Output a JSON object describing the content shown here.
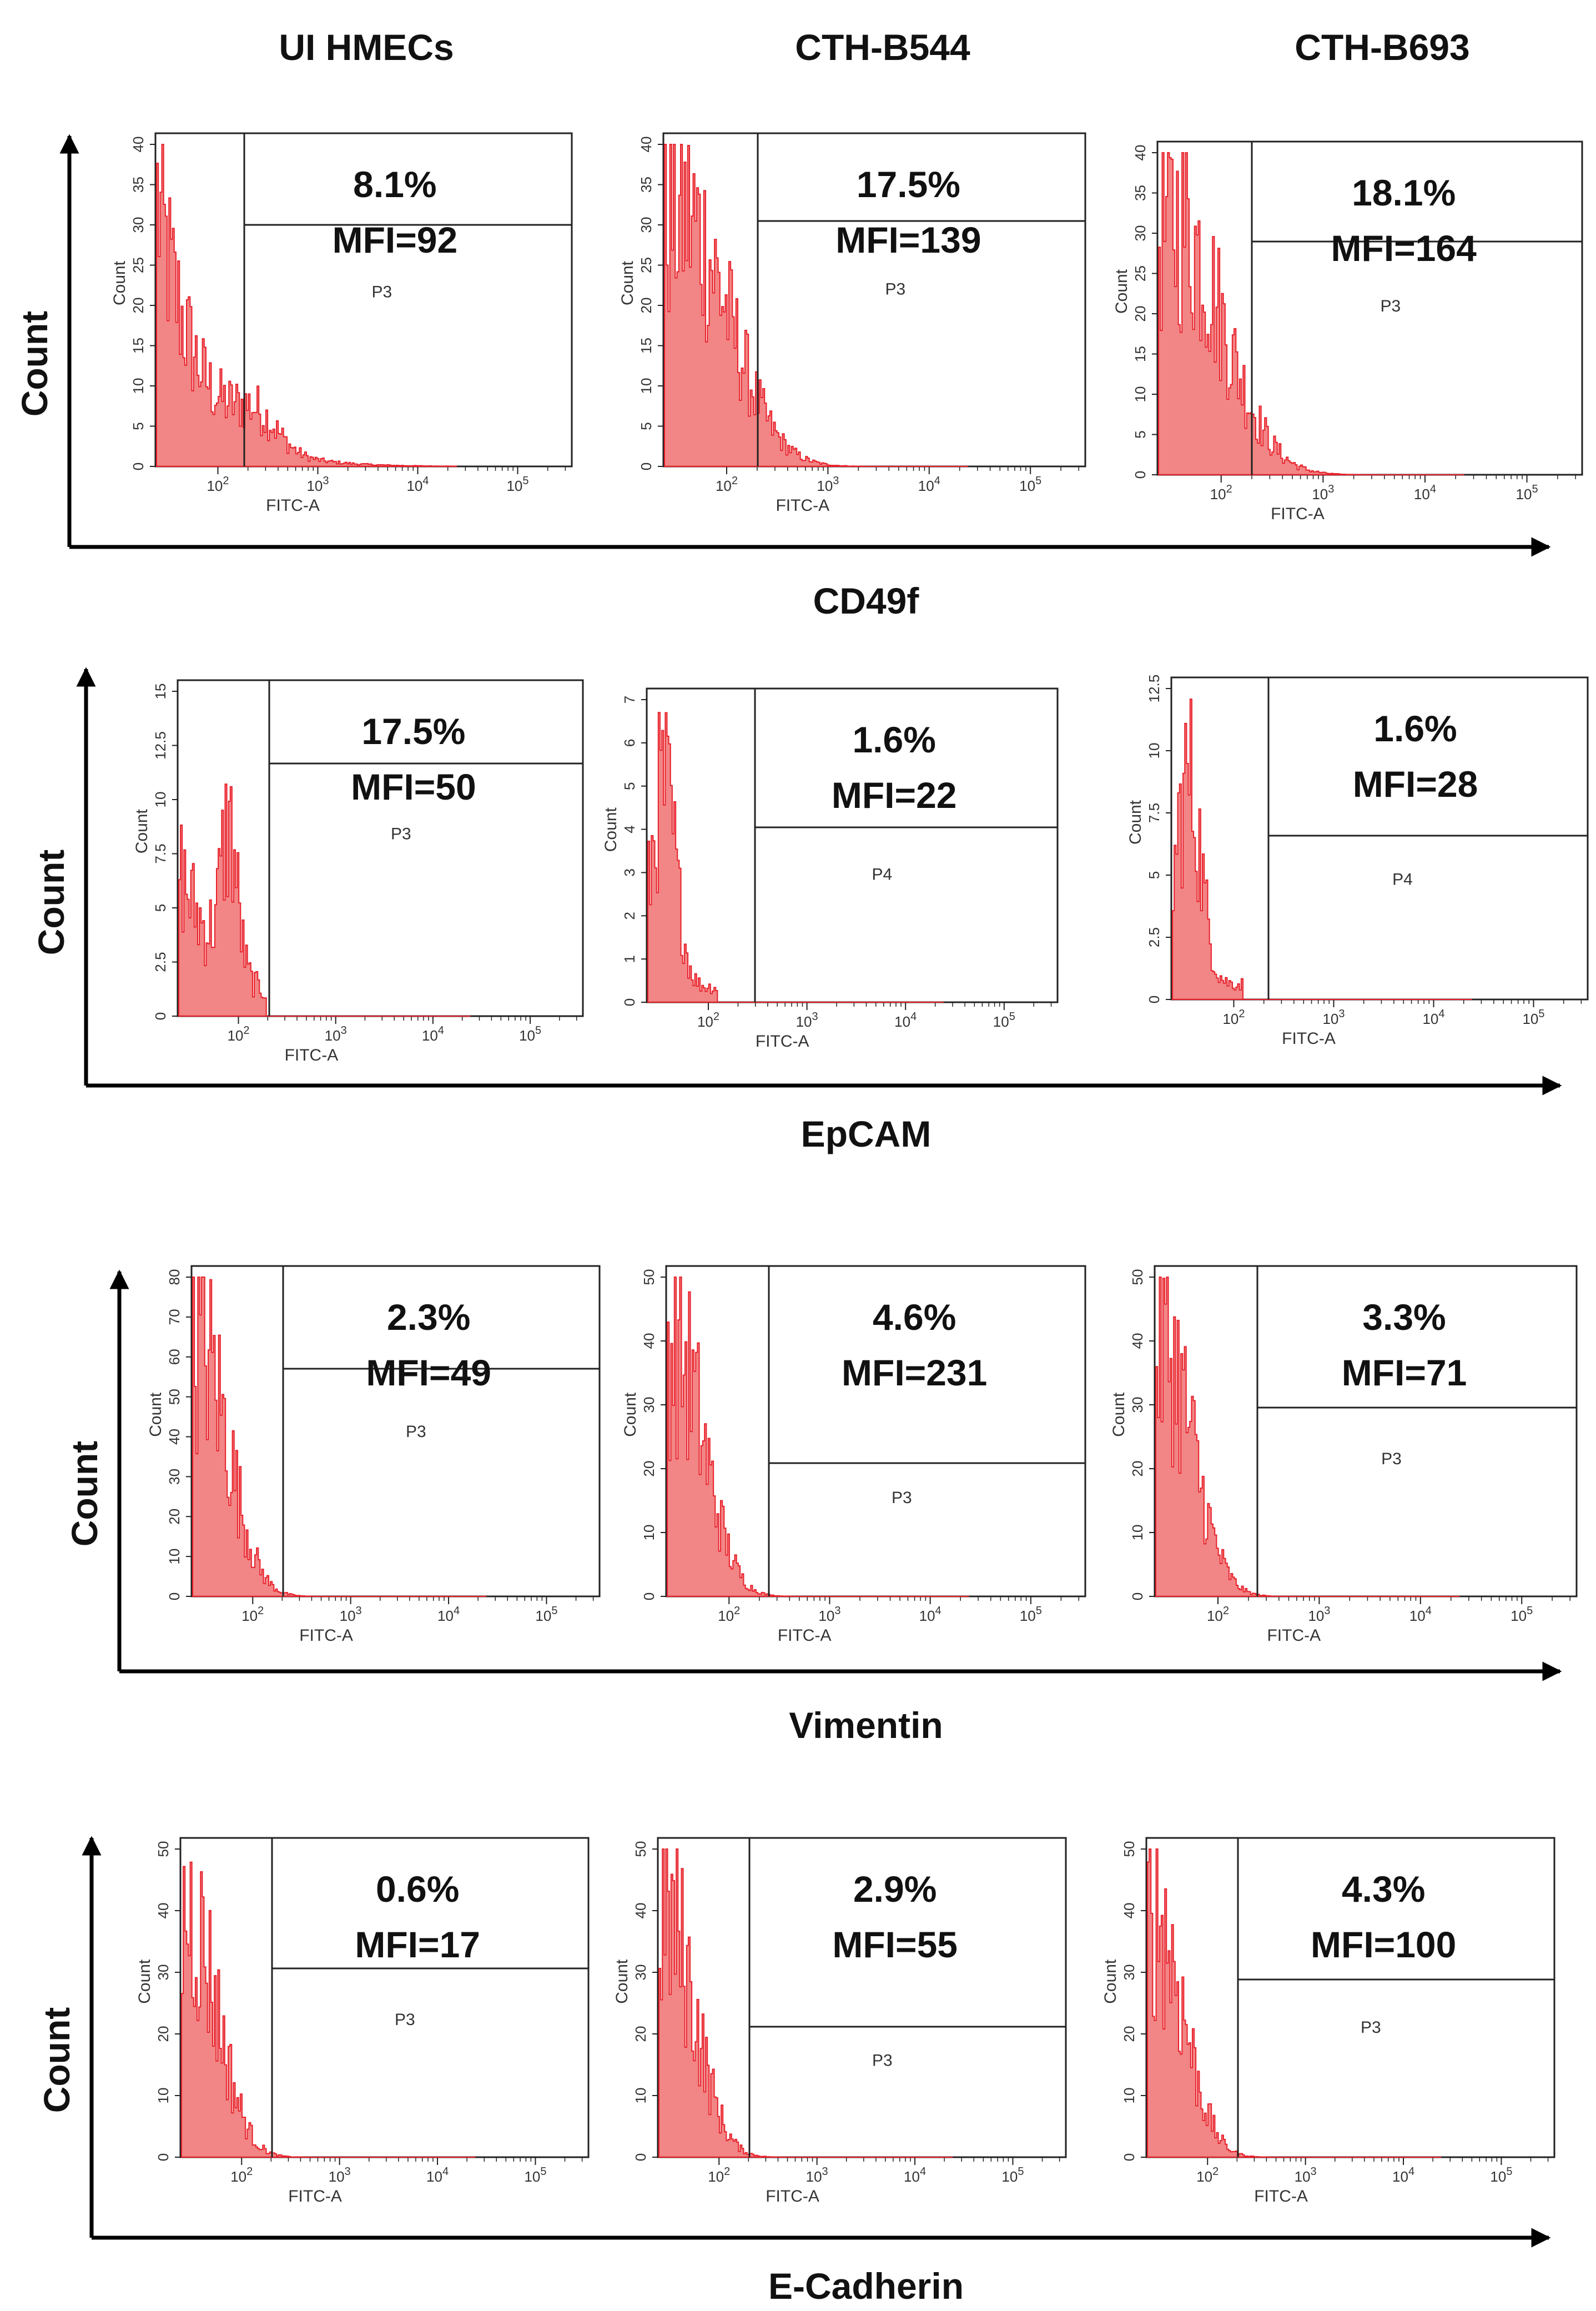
{
  "column_titles": [
    "UI HMECs",
    "CTH-B544",
    "CTH-B693"
  ],
  "row_axis_label": "Count",
  "colors": {
    "histogram": "#e8202a",
    "fill": "#f07070",
    "frame": "#222222",
    "axis": "#000000"
  },
  "chart_data": [
    {
      "type": "histogram",
      "marker": "CD49f",
      "xlabel": "FITC-A",
      "ylabel": "Count",
      "xscale": "log",
      "xticks": [
        "10^2",
        "10^3",
        "10^4",
        "10^5"
      ],
      "panels": [
        {
          "sample": "UI HMECs",
          "percent": "8.1%",
          "mfi": "MFI=92",
          "gate": "P3",
          "ymax": 40,
          "yticks": [
            "0",
            "5",
            "10",
            "15",
            "20",
            "25",
            "30",
            "35",
            "40"
          ],
          "profile": "broad"
        },
        {
          "sample": "CTH-B544",
          "percent": "17.5%",
          "mfi": "MFI=139",
          "gate": "P3",
          "ymax": 40,
          "yticks": [
            "0",
            "5",
            "10",
            "15",
            "20",
            "25",
            "30",
            "35",
            "40"
          ],
          "profile": "wide"
        },
        {
          "sample": "CTH-B693",
          "percent": "18.1%",
          "mfi": "MFI=164",
          "gate": "P3",
          "ymax": 40,
          "yticks": [
            "0",
            "5",
            "10",
            "15",
            "20",
            "25",
            "30",
            "35",
            "40"
          ],
          "profile": "wide"
        }
      ]
    },
    {
      "type": "histogram",
      "marker": "EpCAM",
      "xlabel": "FITC-A",
      "ylabel": "Count",
      "xscale": "log",
      "xticks": [
        "10^2",
        "10^3",
        "10^4",
        "10^5"
      ],
      "panels": [
        {
          "sample": "UI HMECs",
          "percent": "17.5%",
          "mfi": "MFI=50",
          "gate": "P3",
          "ymax": 15,
          "yticks": [
            "0",
            "2.5",
            "5",
            "7.5",
            "10",
            "12.5",
            "15"
          ],
          "profile": "bimodal"
        },
        {
          "sample": "CTH-B544",
          "percent": "1.6%",
          "mfi": "MFI=22",
          "gate": "P4",
          "ymax": 7,
          "yticks": [
            "0",
            "1",
            "2",
            "3",
            "4",
            "5",
            "6",
            "7"
          ],
          "profile": "sparse"
        },
        {
          "sample": "CTH-B693",
          "percent": "1.6%",
          "mfi": "MFI=28",
          "gate": "P4",
          "ymax": 12.5,
          "yticks": [
            "0",
            "2.5",
            "5",
            "7.5",
            "10",
            "12.5"
          ],
          "profile": "sparse"
        }
      ]
    },
    {
      "type": "histogram",
      "marker": "Vimentin",
      "xlabel": "FITC-A",
      "ylabel": "Count",
      "xscale": "log",
      "xticks": [
        "10^2",
        "10^3",
        "10^4",
        "10^5"
      ],
      "panels": [
        {
          "sample": "UI HMECs",
          "percent": "2.3%",
          "mfi": "MFI=49",
          "gate": "P3",
          "ymax": 80,
          "yticks": [
            "0",
            "10",
            "20",
            "30",
            "40",
            "50",
            "60",
            "70",
            "80"
          ],
          "profile": "narrow"
        },
        {
          "sample": "CTH-B544",
          "percent": "4.6%",
          "mfi": "MFI=231",
          "gate": "P3",
          "ymax": 50,
          "yticks": [
            "0",
            "10",
            "20",
            "30",
            "40",
            "50"
          ],
          "profile": "narrow"
        },
        {
          "sample": "CTH-B693",
          "percent": "3.3%",
          "mfi": "MFI=71",
          "gate": "P3",
          "ymax": 50,
          "yticks": [
            "0",
            "10",
            "20",
            "30",
            "40",
            "50"
          ],
          "profile": "narrow"
        }
      ]
    },
    {
      "type": "histogram",
      "marker": "E-Cadherin",
      "xlabel": "FITC-A",
      "ylabel": "Count",
      "xscale": "log",
      "xticks": [
        "10^2",
        "10^3",
        "10^4",
        "10^5"
      ],
      "panels": [
        {
          "sample": "UI HMECs",
          "percent": "0.6%",
          "mfi": "MFI=17",
          "gate": "P3",
          "ymax": 50,
          "yticks": [
            "0",
            "10",
            "20",
            "30",
            "40",
            "50"
          ],
          "profile": "narrow"
        },
        {
          "sample": "CTH-B544",
          "percent": "2.9%",
          "mfi": "MFI=55",
          "gate": "P3",
          "ymax": 50,
          "yticks": [
            "0",
            "10",
            "20",
            "30",
            "40",
            "50"
          ],
          "profile": "narrow"
        },
        {
          "sample": "CTH-B693",
          "percent": "4.3%",
          "mfi": "MFI=100",
          "gate": "P3",
          "ymax": 50,
          "yticks": [
            "0",
            "10",
            "20",
            "30",
            "40",
            "50"
          ],
          "profile": "narrow"
        }
      ]
    }
  ]
}
